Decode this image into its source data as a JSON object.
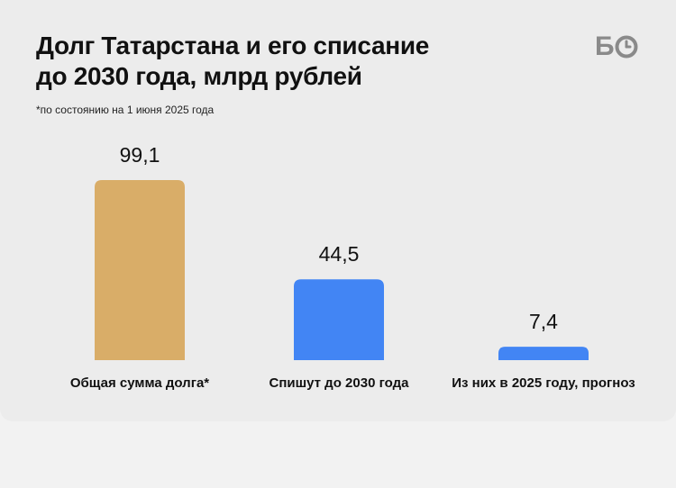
{
  "title": "Долг Татарстана и его списание\nдо 2030 года, млрд рублей",
  "note": "*по состоянию на 1 июня 2025 года",
  "logo": {
    "letter": "Б",
    "icon": "clock-icon"
  },
  "colors": {
    "total": "#D9AD68",
    "writeoff": "#4285F4"
  },
  "chart_data": {
    "type": "bar",
    "title": "Долг Татарстана и его списание до 2030 года, млрд рублей",
    "categories": [
      "Общая сумма долга*",
      "Спишут до 2030 года",
      "Из них в 2025 году, прогноз"
    ],
    "values": [
      99.1,
      44.5,
      7.4
    ],
    "value_labels": [
      "99,1",
      "44,5",
      "7,4"
    ],
    "bar_colors": [
      "#D9AD68",
      "#4285F4",
      "#4285F4"
    ],
    "ylim": [
      0,
      99.1
    ],
    "xlabel": "",
    "ylabel": "",
    "grid": false,
    "legend": "none"
  }
}
